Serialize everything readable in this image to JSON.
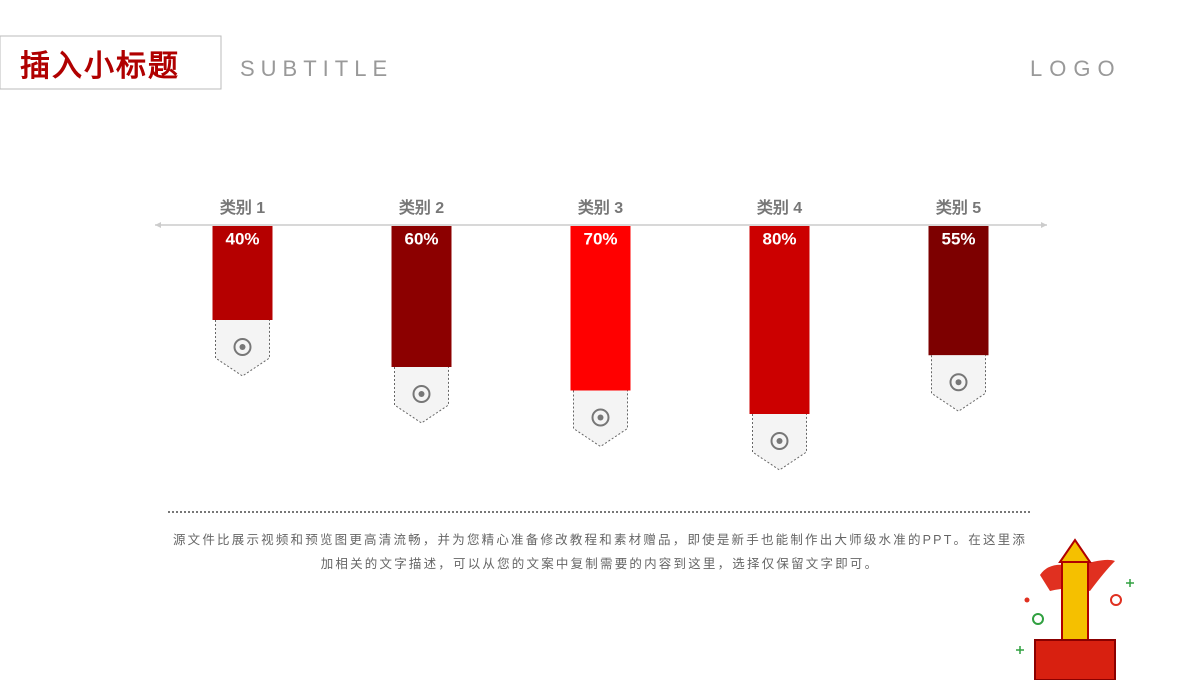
{
  "header": {
    "title": "插入小标题",
    "subtitle": "SUBTITLE",
    "logo": "LOGO"
  },
  "chart_data": {
    "type": "bar",
    "categories": [
      "类别 1",
      "类别 2",
      "类别 3",
      "类别 4",
      "类别 5"
    ],
    "values": [
      40,
      60,
      70,
      80,
      55
    ],
    "value_labels": [
      "40%",
      "60%",
      "70%",
      "80%",
      "55%"
    ],
    "colors": [
      "#b50000",
      "#8c0000",
      "#ff0000",
      "#cc0000",
      "#7d0000"
    ]
  },
  "description": "源文件比展示视频和预览图更高清流畅，并为您精心准备修改教程和素材赠品，即使是新手也能制作出大师级水准的PPT。在这里添加相关的文字描述，可以从您的文案中复制需要的内容到这里，选择仅保留文字即可。"
}
